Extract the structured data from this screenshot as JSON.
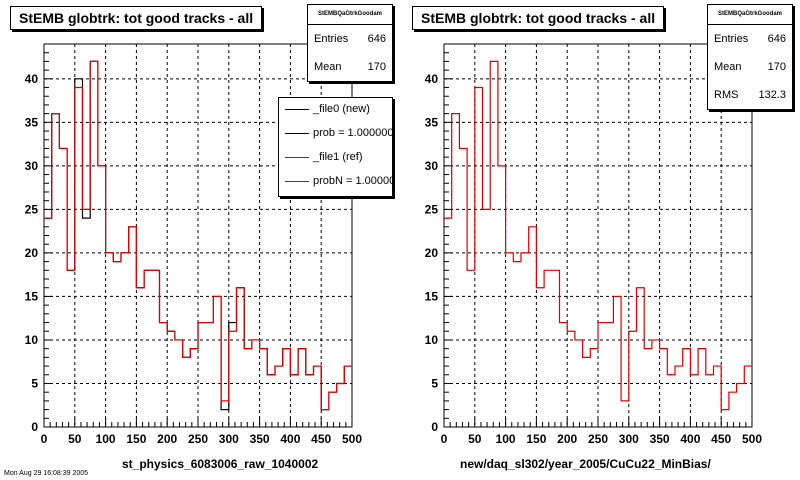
{
  "colors": {
    "new": "#000000",
    "ref": "#dd0000",
    "grid": "#000000"
  },
  "pads": [
    {
      "title": "StEMB globtrk: tot good tracks - all",
      "xtitle": "st_physics_6083006_raw_1040002",
      "stats": {
        "title": "StEMBQaGtrkGoodam",
        "rows": [
          {
            "label": "Entries",
            "value": "646"
          },
          {
            "label": "Mean",
            "value": "170"
          }
        ]
      },
      "legend": [
        {
          "color": "#000000",
          "text": "_file0 (new)"
        },
        {
          "color": "#000000",
          "text": "prob = 1.000000"
        },
        {
          "color": "#dd0000",
          "text": "_file1 (ref)"
        },
        {
          "color": "#dd0000",
          "text": "probN = 1.000000"
        }
      ]
    },
    {
      "title": "StEMB globtrk: tot good tracks - all",
      "xtitle": "new/daq_sl302/year_2005/CuCu22_MinBias/",
      "stats": {
        "title": "StEMBQaGtrkGoodam",
        "rows": [
          {
            "label": "Entries",
            "value": "646"
          },
          {
            "label": "Mean",
            "value": "170"
          },
          {
            "label": "RMS",
            "value": "132.3"
          }
        ]
      },
      "legend": []
    }
  ],
  "footer": "Mon Aug 29 16:08:39 2005",
  "chart_data": [
    {
      "type": "histogram",
      "title": "StEMB globtrk: tot good tracks - all",
      "xlabel": "st_physics_6083006_raw_1040002",
      "xlim": [
        0,
        500
      ],
      "ylim": [
        0,
        44
      ],
      "bin_width": 12.5,
      "xticks": [
        0,
        50,
        100,
        150,
        200,
        250,
        300,
        350,
        400,
        450,
        500
      ],
      "yticks": [
        0,
        5,
        10,
        15,
        20,
        25,
        30,
        35,
        40
      ],
      "grid": true,
      "legend_position": "top-right",
      "series": [
        {
          "name": "_file0 (new)",
          "color": "#000000",
          "values": [
            24,
            36,
            32,
            18,
            40,
            24,
            42,
            30,
            20,
            19,
            20,
            23,
            16,
            18,
            18,
            12,
            11,
            10,
            8,
            9,
            12,
            12,
            15,
            2,
            12,
            16,
            9,
            10,
            9,
            6,
            7,
            9,
            6,
            9,
            6,
            7,
            2,
            4,
            5,
            7
          ]
        },
        {
          "name": "_file1 (ref)",
          "color": "#dd0000",
          "values": [
            24,
            36,
            32,
            18,
            39,
            25,
            42,
            30,
            20,
            19,
            20,
            23,
            16,
            18,
            18,
            12,
            11,
            10,
            8,
            9,
            12,
            12,
            15,
            3,
            11,
            16,
            9,
            10,
            9,
            6,
            7,
            9,
            6,
            9,
            6,
            7,
            2,
            4,
            5,
            7
          ]
        }
      ]
    },
    {
      "type": "histogram",
      "title": "StEMB globtrk: tot good tracks - all",
      "xlabel": "new/daq_sl302/year_2005/CuCu22_MinBias/",
      "xlim": [
        0,
        500
      ],
      "ylim": [
        0,
        44
      ],
      "bin_width": 12.5,
      "xticks": [
        0,
        50,
        100,
        150,
        200,
        250,
        300,
        350,
        400,
        450,
        500
      ],
      "yticks": [
        0,
        5,
        10,
        15,
        20,
        25,
        30,
        35,
        40
      ],
      "grid": true,
      "series": [
        {
          "name": "",
          "color": "#dd0000",
          "values": [
            24,
            36,
            32,
            18,
            39,
            25,
            42,
            30,
            20,
            19,
            20,
            23,
            16,
            18,
            18,
            12,
            11,
            10,
            8,
            9,
            12,
            12,
            15,
            3,
            11,
            16,
            9,
            10,
            9,
            6,
            7,
            9,
            6,
            9,
            6,
            7,
            2,
            4,
            5,
            7
          ]
        }
      ]
    }
  ]
}
